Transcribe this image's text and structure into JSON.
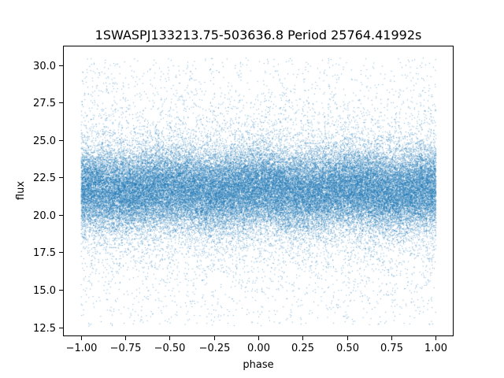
{
  "chart_data": {
    "type": "scatter",
    "title": "1SWASPJ133213.75-503636.8 Period 25764.41992s",
    "xlabel": "phase",
    "ylabel": "flux",
    "xlim": [
      -1.1,
      1.1
    ],
    "ylim": [
      11.9,
      31.3
    ],
    "xticks": [
      -1.0,
      -0.75,
      -0.5,
      -0.25,
      0.0,
      0.25,
      0.5,
      0.75,
      1.0
    ],
    "xtick_labels": [
      "−1.00",
      "−0.75",
      "−0.50",
      "−0.25",
      "0.00",
      "0.25",
      "0.50",
      "0.75",
      "1.00"
    ],
    "yticks": [
      12.5,
      15.0,
      17.5,
      20.0,
      22.5,
      25.0,
      27.5,
      30.0
    ],
    "ytick_labels": [
      "12.5",
      "15.0",
      "17.5",
      "20.0",
      "22.5",
      "25.0",
      "27.5",
      "30.0"
    ],
    "series": [
      {
        "color": "#1f77b4",
        "x_range": [
          -1.0,
          1.0
        ],
        "y_range": [
          12.6,
          30.5
        ],
        "mean_flux": 21.7,
        "points_estimated": 60000
      }
    ],
    "grid": false,
    "legend": "none"
  }
}
